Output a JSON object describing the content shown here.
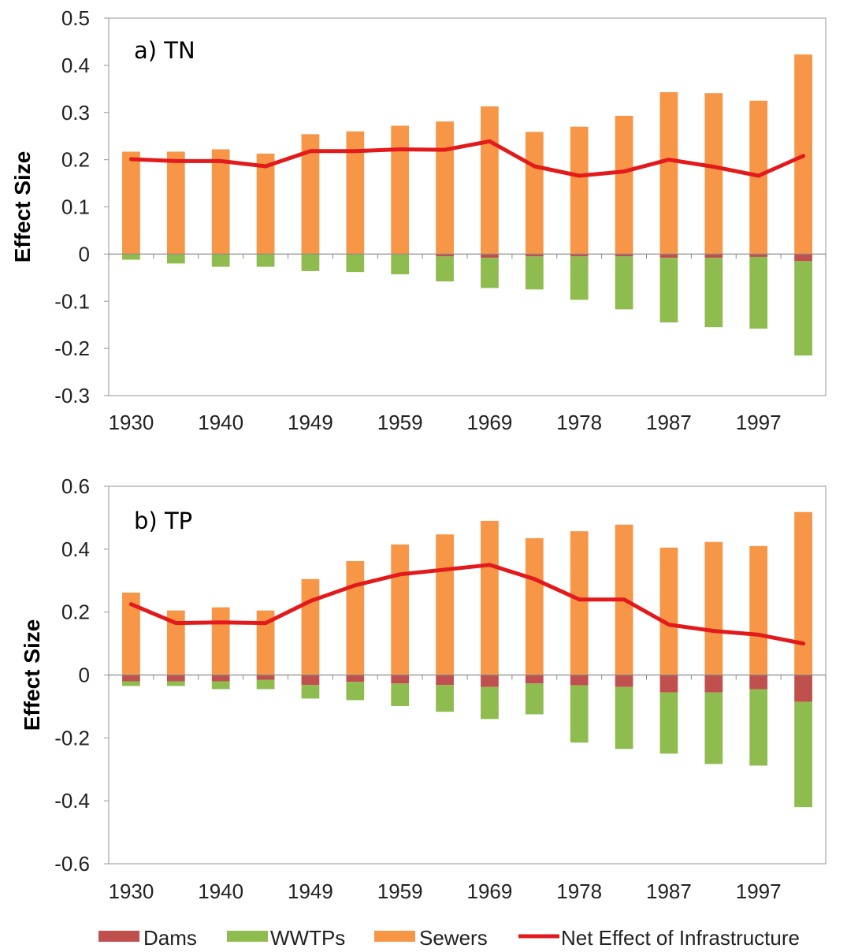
{
  "chart_data": [
    {
      "type": "bar",
      "panel_title": "a) TN",
      "ylabel": "Effect Size",
      "xlabel": "",
      "ylim": [
        -0.3,
        0.5
      ],
      "yticks": [
        0.5,
        0.4,
        0.3,
        0.2,
        0.1,
        0,
        -0.1,
        -0.2,
        -0.3
      ],
      "ytick_labels": [
        "0.5",
        "0.4",
        "0.3",
        "0.2",
        "0.1",
        "0",
        "-0.1",
        "-0.2",
        "-0.3"
      ],
      "x": [
        1930,
        1935,
        1940,
        1945,
        1949,
        1954,
        1959,
        1964,
        1969,
        1974,
        1978,
        1983,
        1987,
        1992,
        1997,
        2002
      ],
      "xtick_labels": [
        "1930",
        "1940",
        "1949",
        "1959",
        "1969",
        "1978",
        "1987",
        "1997"
      ],
      "xtick_label_every": 2,
      "grid": false,
      "series": [
        {
          "name": "Dams",
          "type": "stacked-bar",
          "color": "#c0504d",
          "values": [
            0,
            0,
            0,
            0,
            0,
            0,
            0,
            -0.005,
            -0.008,
            -0.005,
            -0.005,
            -0.005,
            -0.008,
            -0.008,
            -0.006,
            -0.015
          ]
        },
        {
          "name": "WWTPs",
          "type": "stacked-bar",
          "color": "#8fbc4f",
          "values": [
            -0.012,
            -0.02,
            -0.027,
            -0.027,
            -0.036,
            -0.038,
            -0.043,
            -0.053,
            -0.064,
            -0.07,
            -0.092,
            -0.112,
            -0.137,
            -0.147,
            -0.152,
            -0.2
          ]
        },
        {
          "name": "Sewers",
          "type": "stacked-bar",
          "color": "#f79646",
          "values": [
            0.217,
            0.217,
            0.222,
            0.213,
            0.254,
            0.26,
            0.272,
            0.281,
            0.313,
            0.259,
            0.27,
            0.293,
            0.343,
            0.341,
            0.325,
            0.423
          ]
        },
        {
          "name": "Net Effect of Infrastructure",
          "type": "line",
          "color": "#e31a1c",
          "values": [
            0.201,
            0.197,
            0.197,
            0.186,
            0.218,
            0.218,
            0.222,
            0.221,
            0.239,
            0.186,
            0.166,
            0.175,
            0.2,
            0.185,
            0.166,
            0.208
          ]
        }
      ]
    },
    {
      "type": "bar",
      "panel_title": "b) TP",
      "ylabel": "Effect Size",
      "xlabel": "",
      "ylim": [
        -0.6,
        0.6
      ],
      "yticks": [
        0.6,
        0.4,
        0.2,
        0,
        -0.2,
        -0.4,
        -0.6
      ],
      "ytick_labels": [
        "0.6",
        "0.4",
        "0.2",
        "0",
        "-0.2",
        "-0.4",
        "-0.6"
      ],
      "x": [
        1930,
        1935,
        1940,
        1945,
        1949,
        1954,
        1959,
        1964,
        1969,
        1974,
        1978,
        1983,
        1987,
        1992,
        1997,
        2002
      ],
      "xtick_labels": [
        "1930",
        "1940",
        "1949",
        "1959",
        "1969",
        "1978",
        "1987",
        "1997"
      ],
      "xtick_label_every": 2,
      "grid": false,
      "series": [
        {
          "name": "Dams",
          "type": "stacked-bar",
          "color": "#c0504d",
          "values": [
            -0.02,
            -0.02,
            -0.02,
            -0.015,
            -0.032,
            -0.022,
            -0.027,
            -0.032,
            -0.038,
            -0.027,
            -0.033,
            -0.038,
            -0.055,
            -0.055,
            -0.045,
            -0.085
          ]
        },
        {
          "name": "WWTPs",
          "type": "stacked-bar",
          "color": "#8fbc4f",
          "values": [
            -0.015,
            -0.015,
            -0.025,
            -0.03,
            -0.043,
            -0.058,
            -0.072,
            -0.085,
            -0.102,
            -0.098,
            -0.182,
            -0.197,
            -0.195,
            -0.228,
            -0.243,
            -0.335
          ]
        },
        {
          "name": "Sewers",
          "type": "stacked-bar",
          "color": "#f79646",
          "values": [
            0.262,
            0.205,
            0.215,
            0.205,
            0.305,
            0.362,
            0.415,
            0.447,
            0.49,
            0.435,
            0.457,
            0.478,
            0.405,
            0.423,
            0.41,
            0.518
          ]
        },
        {
          "name": "Net Effect of Infrastructure",
          "type": "line",
          "color": "#e31a1c",
          "values": [
            0.225,
            0.165,
            0.167,
            0.165,
            0.235,
            0.285,
            0.32,
            0.335,
            0.35,
            0.305,
            0.24,
            0.24,
            0.16,
            0.14,
            0.128,
            0.1
          ]
        }
      ]
    }
  ],
  "legend": {
    "placement": "bottom",
    "items": [
      {
        "label": "Dams",
        "color": "#c0504d",
        "kind": "box"
      },
      {
        "label": "WWTPs",
        "color": "#8fbc4f",
        "kind": "box"
      },
      {
        "label": "Sewers",
        "color": "#f79646",
        "kind": "box"
      },
      {
        "label": "Net Effect of Infrastructure",
        "color": "#e31a1c",
        "kind": "line"
      }
    ]
  }
}
